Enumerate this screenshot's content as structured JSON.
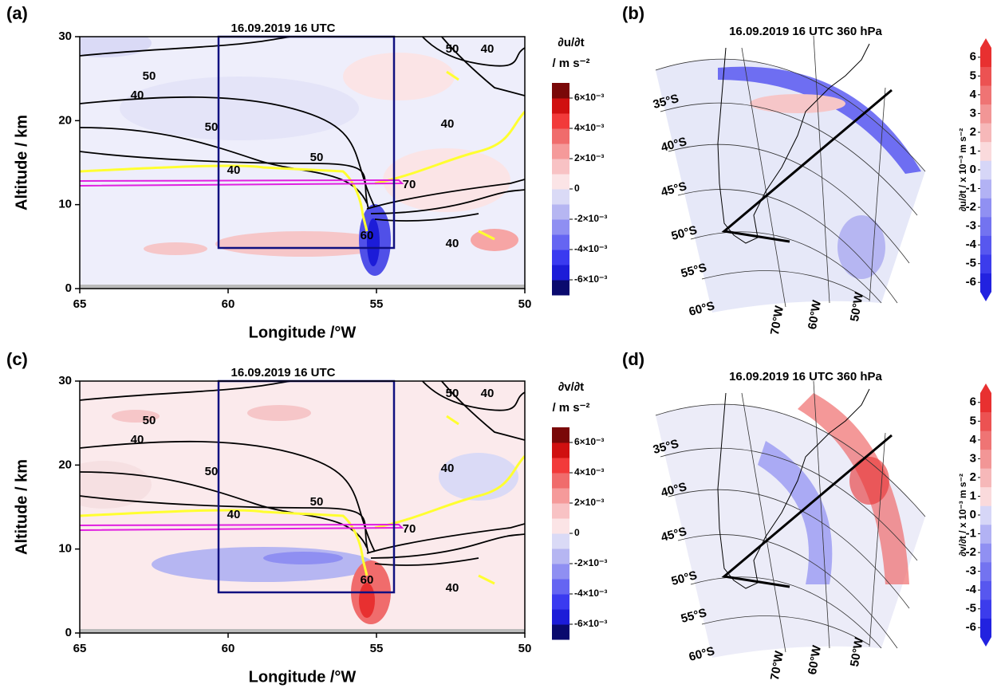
{
  "chart_data": [
    {
      "type": "contour",
      "panel": "(a)",
      "title": "16.09.2019 16 UTC",
      "x_label": "Longitude /°W",
      "y_label": "Altitude / km",
      "xlim": [
        65,
        50
      ],
      "xticks": [
        65,
        60,
        55,
        50
      ],
      "ylim": [
        0,
        30
      ],
      "yticks": [
        0,
        10,
        20,
        30
      ],
      "colorbar_title": "∂u/∂t",
      "colorbar_units": "/ m s⁻²",
      "colorbar_lim": [
        -0.007,
        0.007
      ],
      "colorbar_ticks": [
        {
          "value": 0.006,
          "label": "6×10⁻³"
        },
        {
          "value": 0.004,
          "label": "4×10⁻³"
        },
        {
          "value": 0.002,
          "label": "2×10⁻³"
        },
        0,
        {
          "value": -0.002,
          "label": "-2×10⁻³"
        },
        {
          "value": -0.004,
          "label": "-4×10⁻³"
        },
        {
          "value": -0.006,
          "label": "-6×10⁻³"
        }
      ],
      "colorbar_colors": [
        "#0a0a6e",
        "#1c1cd8",
        "#3a3af0",
        "#6565f2",
        "#8f8ff2",
        "#b6b6f2",
        "#dadaf6",
        "#fbe4e6",
        "#f8c2c4",
        "#f59a9a",
        "#f06c6c",
        "#f23a3a",
        "#d01010",
        "#7a0808"
      ],
      "contour_labels": [
        50,
        40,
        50,
        40,
        50,
        70,
        60,
        40,
        40,
        50,
        40
      ]
    },
    {
      "type": "map",
      "panel": "(b)",
      "title": "16.09.2019 16 UTC 360 hPa",
      "lat_labels": [
        "35°S",
        "40°S",
        "45°S",
        "50°S",
        "55°S",
        "60°S"
      ],
      "lon_labels": [
        "70°W",
        "60°W",
        "50°W"
      ],
      "colorbar_label": "∂u/∂t / x 10⁻³ m s⁻²",
      "colorbar_lim": [
        -6.5,
        6.5
      ],
      "colorbar_ticks": [
        6,
        5,
        4,
        3,
        2,
        1,
        0,
        -1,
        -2,
        -3,
        -4,
        -5,
        -6
      ],
      "colorbar_colors": [
        "#2222e0",
        "#3c3cec",
        "#5757ef",
        "#7373f0",
        "#9090f2",
        "#b2b2f4",
        "#d6d6f7",
        "#fadadc",
        "#f6b8b9",
        "#f29696",
        "#ef7474",
        "#ec5252",
        "#e83030"
      ]
    },
    {
      "type": "contour",
      "panel": "(c)",
      "title": "16.09.2019 16 UTC",
      "x_label": "Longitude /°W",
      "y_label": "Altitude / km",
      "xlim": [
        65,
        50
      ],
      "xticks": [
        65,
        60,
        55,
        50
      ],
      "ylim": [
        0,
        30
      ],
      "yticks": [
        0,
        10,
        20,
        30
      ],
      "colorbar_title": "∂v/∂t",
      "colorbar_units": "/ m s⁻²",
      "colorbar_lim": [
        -0.007,
        0.007
      ],
      "colorbar_ticks": [
        {
          "value": 0.006,
          "label": "6×10⁻³"
        },
        {
          "value": 0.004,
          "label": "4×10⁻³"
        },
        {
          "value": 0.002,
          "label": "2×10⁻³"
        },
        0,
        {
          "value": -0.002,
          "label": "-2×10⁻³"
        },
        {
          "value": -0.004,
          "label": "-4×10⁻³"
        },
        {
          "value": -0.006,
          "label": "-6×10⁻³"
        }
      ],
      "colorbar_colors": [
        "#0a0a6e",
        "#1c1cd8",
        "#3a3af0",
        "#6565f2",
        "#8f8ff2",
        "#b6b6f2",
        "#dadaf6",
        "#fbe4e6",
        "#f8c2c4",
        "#f59a9a",
        "#f06c6c",
        "#f23a3a",
        "#d01010",
        "#7a0808"
      ],
      "contour_labels": [
        50,
        40,
        50,
        40,
        50,
        70,
        60,
        40,
        40,
        50,
        40
      ]
    },
    {
      "type": "map",
      "panel": "(d)",
      "title": "16.09.2019 16 UTC 360 hPa",
      "lat_labels": [
        "35°S",
        "40°S",
        "45°S",
        "50°S",
        "55°S",
        "60°S"
      ],
      "lon_labels": [
        "70°W",
        "60°W",
        "50°W"
      ],
      "colorbar_label": "∂v/∂t / x 10⁻³ m s⁻²",
      "colorbar_lim": [
        -6.5,
        6.5
      ],
      "colorbar_ticks": [
        6,
        5,
        4,
        3,
        2,
        1,
        0,
        -1,
        -2,
        -3,
        -4,
        -5,
        -6
      ],
      "colorbar_colors": [
        "#2222e0",
        "#3c3cec",
        "#5757ef",
        "#7373f0",
        "#9090f2",
        "#b2b2f4",
        "#d6d6f7",
        "#fadadc",
        "#f6b8b9",
        "#f29696",
        "#ef7474",
        "#ec5252",
        "#e83030"
      ]
    }
  ]
}
